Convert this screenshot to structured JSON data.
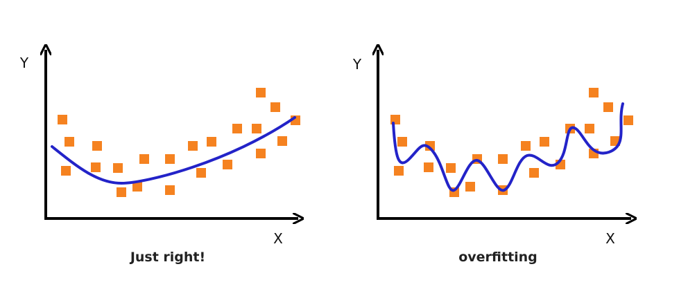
{
  "panels": [
    {
      "y_label": "Y",
      "x_label": "X",
      "caption": "Just right!"
    },
    {
      "y_label": "Y",
      "x_label": "X",
      "caption": "overfitting"
    }
  ]
}
